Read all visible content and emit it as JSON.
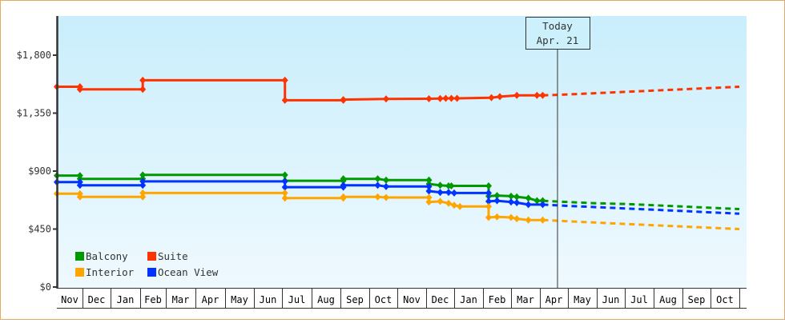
{
  "chart_data": {
    "type": "line",
    "title": "",
    "xlabel": "",
    "ylabel": "",
    "ylim": [
      0,
      2250
    ],
    "yticks": [
      {
        "value": 0,
        "label": "$0"
      },
      {
        "value": 450,
        "label": "$450"
      },
      {
        "value": 900,
        "label": "$900"
      },
      {
        "value": 1350,
        "label": "$1,350"
      },
      {
        "value": 1800,
        "label": "$1,800"
      }
    ],
    "x_months": [
      "Nov",
      "Dec",
      "Jan",
      "Feb",
      "Mar",
      "Apr",
      "May",
      "Jun",
      "Jul",
      "Aug",
      "Sep",
      "Oct",
      "Nov",
      "Dec",
      "Jan",
      "Feb",
      "Mar",
      "Apr",
      "May",
      "Jun",
      "Jul",
      "Aug",
      "Sep",
      "Oct"
    ],
    "grid": false,
    "legend_position": "bottom-left inside plot",
    "today_marker": {
      "line1": "Today",
      "line2": "Apr. 21"
    },
    "x_unit": "months since start of first Nov (fractional)",
    "series": [
      {
        "name": "Suite",
        "color": "#ff3300",
        "history": [
          [
            0.0,
            1555
          ],
          [
            0.9,
            1555
          ],
          [
            0.9,
            1535
          ],
          [
            3.1,
            1535
          ],
          [
            3.1,
            1605
          ],
          [
            8.1,
            1605
          ],
          [
            8.1,
            1450
          ],
          [
            10.1,
            1450
          ],
          [
            10.1,
            1455
          ],
          [
            11.6,
            1460
          ],
          [
            13.1,
            1462
          ],
          [
            13.5,
            1463
          ],
          [
            13.7,
            1465
          ],
          [
            13.9,
            1465
          ],
          [
            14.1,
            1465
          ],
          [
            15.3,
            1470
          ],
          [
            15.6,
            1478
          ],
          [
            16.2,
            1488
          ],
          [
            16.9,
            1488
          ],
          [
            17.1,
            1488
          ]
        ],
        "forecast": [
          [
            17.1,
            1488
          ],
          [
            18,
            1495
          ],
          [
            19,
            1505
          ],
          [
            20,
            1515
          ],
          [
            21,
            1525
          ],
          [
            22,
            1535
          ],
          [
            23,
            1545
          ],
          [
            24,
            1555
          ]
        ]
      },
      {
        "name": "Balcony",
        "color": "#009900",
        "history": [
          [
            0.0,
            865
          ],
          [
            0.9,
            865
          ],
          [
            0.9,
            840
          ],
          [
            3.1,
            840
          ],
          [
            3.1,
            870
          ],
          [
            8.1,
            870
          ],
          [
            8.1,
            825
          ],
          [
            10.1,
            825
          ],
          [
            10.1,
            840
          ],
          [
            11.3,
            840
          ],
          [
            11.6,
            830
          ],
          [
            13.1,
            830
          ],
          [
            13.1,
            800
          ],
          [
            13.5,
            790
          ],
          [
            13.8,
            785
          ],
          [
            13.9,
            785
          ],
          [
            15.2,
            785
          ],
          [
            15.2,
            705
          ],
          [
            15.5,
            710
          ],
          [
            16.0,
            705
          ],
          [
            16.2,
            700
          ],
          [
            16.6,
            690
          ],
          [
            16.9,
            670
          ],
          [
            17.1,
            670
          ]
        ],
        "forecast": [
          [
            17.1,
            670
          ],
          [
            18,
            660
          ],
          [
            19,
            650
          ],
          [
            20,
            645
          ],
          [
            21,
            635
          ],
          [
            22,
            625
          ],
          [
            23,
            615
          ],
          [
            24,
            605
          ]
        ]
      },
      {
        "name": "Ocean View",
        "color": "#0033ff",
        "history": [
          [
            0.0,
            815
          ],
          [
            0.9,
            815
          ],
          [
            0.9,
            790
          ],
          [
            3.1,
            790
          ],
          [
            3.1,
            820
          ],
          [
            8.1,
            820
          ],
          [
            8.1,
            775
          ],
          [
            10.1,
            775
          ],
          [
            10.1,
            790
          ],
          [
            11.3,
            790
          ],
          [
            11.6,
            780
          ],
          [
            13.1,
            780
          ],
          [
            13.1,
            745
          ],
          [
            13.5,
            735
          ],
          [
            13.8,
            735
          ],
          [
            14.0,
            730
          ],
          [
            15.2,
            730
          ],
          [
            15.2,
            665
          ],
          [
            15.5,
            670
          ],
          [
            16.0,
            660
          ],
          [
            16.2,
            655
          ],
          [
            16.6,
            640
          ],
          [
            17.1,
            640
          ]
        ],
        "forecast": [
          [
            17.1,
            640
          ],
          [
            18,
            630
          ],
          [
            19,
            620
          ],
          [
            20,
            610
          ],
          [
            21,
            600
          ],
          [
            22,
            590
          ],
          [
            23,
            580
          ],
          [
            24,
            570
          ]
        ]
      },
      {
        "name": "Interior",
        "color": "#ffa500",
        "history": [
          [
            0.0,
            725
          ],
          [
            0.9,
            725
          ],
          [
            0.9,
            700
          ],
          [
            3.1,
            700
          ],
          [
            3.1,
            730
          ],
          [
            8.1,
            730
          ],
          [
            8.1,
            690
          ],
          [
            10.1,
            690
          ],
          [
            10.1,
            700
          ],
          [
            11.3,
            700
          ],
          [
            11.6,
            695
          ],
          [
            13.1,
            695
          ],
          [
            13.1,
            660
          ],
          [
            13.5,
            665
          ],
          [
            13.8,
            650
          ],
          [
            14.0,
            635
          ],
          [
            14.2,
            625
          ],
          [
            15.2,
            625
          ],
          [
            15.2,
            540
          ],
          [
            15.5,
            545
          ],
          [
            16.0,
            540
          ],
          [
            16.2,
            530
          ],
          [
            16.6,
            520
          ],
          [
            17.1,
            520
          ]
        ],
        "forecast": [
          [
            17.1,
            520
          ],
          [
            18,
            510
          ],
          [
            19,
            500
          ],
          [
            20,
            490
          ],
          [
            21,
            480
          ],
          [
            22,
            470
          ],
          [
            23,
            460
          ],
          [
            24,
            450
          ]
        ]
      }
    ]
  },
  "legend": [
    {
      "label": "Balcony",
      "color": "#009900"
    },
    {
      "label": "Suite",
      "color": "#ff3300"
    },
    {
      "label": "Interior",
      "color": "#ffa500"
    },
    {
      "label": "Ocean View",
      "color": "#0033ff"
    }
  ],
  "colors": {
    "frame_border": "#e8a860",
    "plot_bg_top": "#c8eefb",
    "plot_bg_bottom": "#eef8fd",
    "axis": "#333333"
  }
}
